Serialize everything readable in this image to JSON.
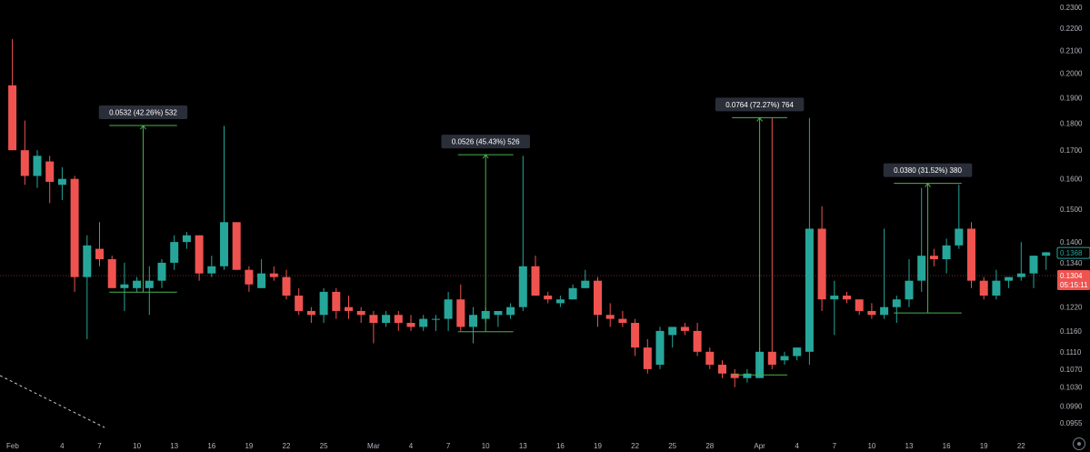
{
  "colors": {
    "background": "#000000",
    "up": "#26a69a",
    "down": "#ef5350",
    "measure": "#4caf50",
    "price_badge": "#ef5350",
    "last_badge": "#26a69a"
  },
  "price_axis": {
    "labels": [
      "0.2300",
      "0.2200",
      "0.2100",
      "0.2000",
      "0.1900",
      "0.1800",
      "0.1700",
      "0.1600",
      "0.1500",
      "0.1400",
      "0.1340",
      "0.1280",
      "0.1220",
      "0.1160",
      "0.1110",
      "0.1070",
      "0.1030",
      "0.0990",
      "0.0955"
    ],
    "current_price": "0.1304",
    "countdown": "05:15:11",
    "last_value": "0.1368"
  },
  "chart_data": {
    "type": "candlestick",
    "title": "",
    "xlabel": "",
    "ylabel": "",
    "y_scale": "log",
    "ylim": [
      0.0925,
      0.233
    ],
    "grid": false,
    "x_ticks": [
      {
        "index": 0,
        "label": "Feb"
      },
      {
        "index": 4,
        "label": "4"
      },
      {
        "index": 7,
        "label": "7"
      },
      {
        "index": 10,
        "label": "10"
      },
      {
        "index": 13,
        "label": "13"
      },
      {
        "index": 16,
        "label": "16"
      },
      {
        "index": 19,
        "label": "19"
      },
      {
        "index": 22,
        "label": "22"
      },
      {
        "index": 25,
        "label": "25"
      },
      {
        "index": 29,
        "label": "Mar"
      },
      {
        "index": 32,
        "label": "4"
      },
      {
        "index": 35,
        "label": "7"
      },
      {
        "index": 38,
        "label": "10"
      },
      {
        "index": 41,
        "label": "13"
      },
      {
        "index": 44,
        "label": "16"
      },
      {
        "index": 47,
        "label": "19"
      },
      {
        "index": 50,
        "label": "22"
      },
      {
        "index": 53,
        "label": "25"
      },
      {
        "index": 56,
        "label": "28"
      },
      {
        "index": 60,
        "label": "Apr"
      },
      {
        "index": 63,
        "label": "4"
      },
      {
        "index": 66,
        "label": "7"
      },
      {
        "index": 69,
        "label": "10"
      },
      {
        "index": 72,
        "label": "13"
      },
      {
        "index": 75,
        "label": "16"
      },
      {
        "index": 78,
        "label": "19"
      },
      {
        "index": 81,
        "label": "22"
      }
    ],
    "candles": [
      {
        "o": 0.195,
        "h": 0.215,
        "l": 0.17,
        "c": 0.17
      },
      {
        "o": 0.17,
        "h": 0.181,
        "l": 0.158,
        "c": 0.161
      },
      {
        "o": 0.161,
        "h": 0.17,
        "l": 0.157,
        "c": 0.168
      },
      {
        "o": 0.166,
        "h": 0.168,
        "l": 0.152,
        "c": 0.159
      },
      {
        "o": 0.158,
        "h": 0.164,
        "l": 0.153,
        "c": 0.16
      },
      {
        "o": 0.16,
        "h": 0.161,
        "l": 0.126,
        "c": 0.13
      },
      {
        "o": 0.13,
        "h": 0.142,
        "l": 0.114,
        "c": 0.139
      },
      {
        "o": 0.138,
        "h": 0.146,
        "l": 0.133,
        "c": 0.135
      },
      {
        "o": 0.135,
        "h": 0.136,
        "l": 0.127,
        "c": 0.127
      },
      {
        "o": 0.127,
        "h": 0.134,
        "l": 0.121,
        "c": 0.128
      },
      {
        "o": 0.127,
        "h": 0.13,
        "l": 0.126,
        "c": 0.129
      },
      {
        "o": 0.127,
        "h": 0.133,
        "l": 0.12,
        "c": 0.129
      },
      {
        "o": 0.129,
        "h": 0.135,
        "l": 0.127,
        "c": 0.134
      },
      {
        "o": 0.134,
        "h": 0.142,
        "l": 0.132,
        "c": 0.14
      },
      {
        "o": 0.14,
        "h": 0.143,
        "l": 0.138,
        "c": 0.142
      },
      {
        "o": 0.142,
        "h": 0.142,
        "l": 0.129,
        "c": 0.131
      },
      {
        "o": 0.131,
        "h": 0.136,
        "l": 0.13,
        "c": 0.133
      },
      {
        "o": 0.133,
        "h": 0.179,
        "l": 0.132,
        "c": 0.146
      },
      {
        "o": 0.146,
        "h": 0.146,
        "l": 0.132,
        "c": 0.132
      },
      {
        "o": 0.132,
        "h": 0.133,
        "l": 0.126,
        "c": 0.128
      },
      {
        "o": 0.127,
        "h": 0.135,
        "l": 0.127,
        "c": 0.131
      },
      {
        "o": 0.131,
        "h": 0.133,
        "l": 0.129,
        "c": 0.13
      },
      {
        "o": 0.13,
        "h": 0.132,
        "l": 0.124,
        "c": 0.125
      },
      {
        "o": 0.125,
        "h": 0.127,
        "l": 0.12,
        "c": 0.121
      },
      {
        "o": 0.121,
        "h": 0.122,
        "l": 0.118,
        "c": 0.12
      },
      {
        "o": 0.12,
        "h": 0.127,
        "l": 0.118,
        "c": 0.126
      },
      {
        "o": 0.126,
        "h": 0.127,
        "l": 0.119,
        "c": 0.121
      },
      {
        "o": 0.122,
        "h": 0.125,
        "l": 0.119,
        "c": 0.121
      },
      {
        "o": 0.121,
        "h": 0.122,
        "l": 0.118,
        "c": 0.12
      },
      {
        "o": 0.12,
        "h": 0.121,
        "l": 0.113,
        "c": 0.118
      },
      {
        "o": 0.118,
        "h": 0.121,
        "l": 0.117,
        "c": 0.12
      },
      {
        "o": 0.12,
        "h": 0.121,
        "l": 0.116,
        "c": 0.118
      },
      {
        "o": 0.118,
        "h": 0.12,
        "l": 0.116,
        "c": 0.117
      },
      {
        "o": 0.117,
        "h": 0.12,
        "l": 0.116,
        "c": 0.119
      },
      {
        "o": 0.119,
        "h": 0.12,
        "l": 0.116,
        "c": 0.119
      },
      {
        "o": 0.119,
        "h": 0.126,
        "l": 0.116,
        "c": 0.124
      },
      {
        "o": 0.124,
        "h": 0.128,
        "l": 0.116,
        "c": 0.117
      },
      {
        "o": 0.117,
        "h": 0.122,
        "l": 0.113,
        "c": 0.12
      },
      {
        "o": 0.119,
        "h": 0.122,
        "l": 0.118,
        "c": 0.121
      },
      {
        "o": 0.12,
        "h": 0.121,
        "l": 0.117,
        "c": 0.121
      },
      {
        "o": 0.12,
        "h": 0.123,
        "l": 0.119,
        "c": 0.122
      },
      {
        "o": 0.122,
        "h": 0.168,
        "l": 0.121,
        "c": 0.133
      },
      {
        "o": 0.133,
        "h": 0.136,
        "l": 0.125,
        "c": 0.125
      },
      {
        "o": 0.125,
        "h": 0.126,
        "l": 0.123,
        "c": 0.124
      },
      {
        "o": 0.123,
        "h": 0.125,
        "l": 0.122,
        "c": 0.124
      },
      {
        "o": 0.124,
        "h": 0.128,
        "l": 0.124,
        "c": 0.127
      },
      {
        "o": 0.127,
        "h": 0.132,
        "l": 0.127,
        "c": 0.129
      },
      {
        "o": 0.129,
        "h": 0.13,
        "l": 0.117,
        "c": 0.12
      },
      {
        "o": 0.12,
        "h": 0.123,
        "l": 0.117,
        "c": 0.119
      },
      {
        "o": 0.119,
        "h": 0.121,
        "l": 0.117,
        "c": 0.118
      },
      {
        "o": 0.118,
        "h": 0.119,
        "l": 0.11,
        "c": 0.112
      },
      {
        "o": 0.112,
        "h": 0.114,
        "l": 0.106,
        "c": 0.107
      },
      {
        "o": 0.108,
        "h": 0.117,
        "l": 0.107,
        "c": 0.116
      },
      {
        "o": 0.115,
        "h": 0.117,
        "l": 0.112,
        "c": 0.117
      },
      {
        "o": 0.117,
        "h": 0.118,
        "l": 0.115,
        "c": 0.116
      },
      {
        "o": 0.116,
        "h": 0.118,
        "l": 0.11,
        "c": 0.111
      },
      {
        "o": 0.111,
        "h": 0.112,
        "l": 0.107,
        "c": 0.108
      },
      {
        "o": 0.108,
        "h": 0.109,
        "l": 0.105,
        "c": 0.106
      },
      {
        "o": 0.106,
        "h": 0.107,
        "l": 0.103,
        "c": 0.105
      },
      {
        "o": 0.105,
        "h": 0.107,
        "l": 0.104,
        "c": 0.106
      },
      {
        "o": 0.105,
        "h": 0.112,
        "l": 0.105,
        "c": 0.111
      },
      {
        "o": 0.111,
        "h": 0.182,
        "l": 0.107,
        "c": 0.108
      },
      {
        "o": 0.109,
        "h": 0.111,
        "l": 0.108,
        "c": 0.11
      },
      {
        "o": 0.11,
        "h": 0.112,
        "l": 0.109,
        "c": 0.112
      },
      {
        "o": 0.111,
        "h": 0.182,
        "l": 0.108,
        "c": 0.144
      },
      {
        "o": 0.144,
        "h": 0.151,
        "l": 0.121,
        "c": 0.124
      },
      {
        "o": 0.124,
        "h": 0.129,
        "l": 0.115,
        "c": 0.125
      },
      {
        "o": 0.125,
        "h": 0.126,
        "l": 0.123,
        "c": 0.124
      },
      {
        "o": 0.124,
        "h": 0.124,
        "l": 0.12,
        "c": 0.121
      },
      {
        "o": 0.121,
        "h": 0.123,
        "l": 0.119,
        "c": 0.12
      },
      {
        "o": 0.12,
        "h": 0.144,
        "l": 0.119,
        "c": 0.122
      },
      {
        "o": 0.122,
        "h": 0.125,
        "l": 0.118,
        "c": 0.124
      },
      {
        "o": 0.124,
        "h": 0.135,
        "l": 0.122,
        "c": 0.129
      },
      {
        "o": 0.129,
        "h": 0.157,
        "l": 0.126,
        "c": 0.136
      },
      {
        "o": 0.136,
        "h": 0.138,
        "l": 0.133,
        "c": 0.135
      },
      {
        "o": 0.135,
        "h": 0.141,
        "l": 0.131,
        "c": 0.139
      },
      {
        "o": 0.139,
        "h": 0.158,
        "l": 0.138,
        "c": 0.144
      },
      {
        "o": 0.144,
        "h": 0.146,
        "l": 0.127,
        "c": 0.129
      },
      {
        "o": 0.129,
        "h": 0.13,
        "l": 0.124,
        "c": 0.125
      },
      {
        "o": 0.125,
        "h": 0.132,
        "l": 0.124,
        "c": 0.129
      },
      {
        "o": 0.129,
        "h": 0.13,
        "l": 0.127,
        "c": 0.13
      },
      {
        "o": 0.13,
        "h": 0.14,
        "l": 0.129,
        "c": 0.131
      },
      {
        "o": 0.131,
        "h": 0.136,
        "l": 0.127,
        "c": 0.136
      },
      {
        "o": 0.136,
        "h": 0.137,
        "l": 0.132,
        "c": 0.137
      }
    ],
    "measurements": [
      {
        "from_index": 8,
        "to_index": 13,
        "from_price": 0.1259,
        "to_price": 0.1791,
        "label": "0.0532 (42.26%) 532"
      },
      {
        "from_index": 36,
        "to_index": 40,
        "from_price": 0.1158,
        "to_price": 0.1684,
        "label": "0.0526 (45.43%) 526"
      },
      {
        "from_index": 58,
        "to_index": 62,
        "from_price": 0.1057,
        "to_price": 0.1821,
        "label": "0.0764 (72.27%) 764"
      },
      {
        "from_index": 71,
        "to_index": 76,
        "from_price": 0.1205,
        "to_price": 0.1585,
        "label": "0.0380 (31.52%) 380"
      }
    ]
  }
}
